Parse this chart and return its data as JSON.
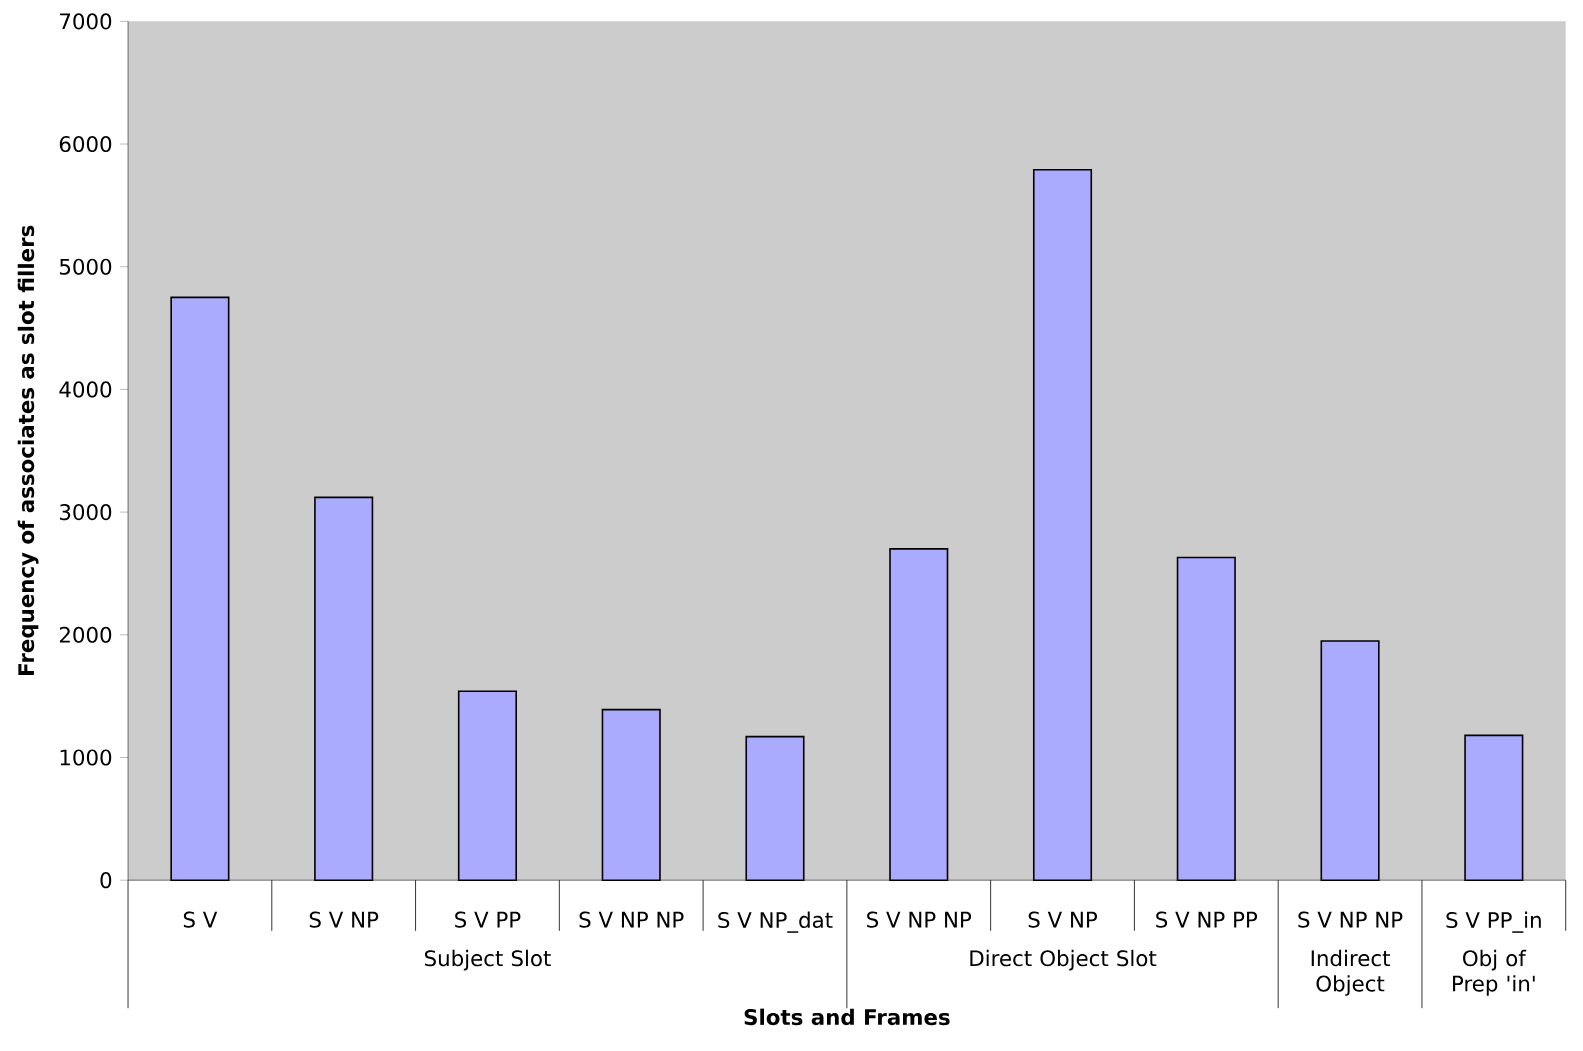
{
  "chart_data": {
    "type": "bar",
    "xlabel": "Slots and Frames",
    "ylabel": "Frequency of associates as slot fillers",
    "categories": [
      "S V",
      "S V NP",
      "S V PP",
      "S V NP NP",
      "S V NP_dat",
      "S V NP NP",
      "S V NP",
      "S V NP PP",
      "S V NP NP",
      "S V PP_in"
    ],
    "values": [
      4750,
      3120,
      1540,
      1390,
      1170,
      2700,
      5790,
      2630,
      1950,
      1180
    ],
    "color": "#aaaaff",
    "ylim": [
      0,
      7000
    ],
    "yticks": [
      0,
      1000,
      2000,
      3000,
      4000,
      5000,
      6000,
      7000
    ],
    "grid": false,
    "annotations": [
      "Subject Slot",
      "Direct Object Slot",
      "Indirect Object",
      "Obj of Prep 'in'"
    ]
  }
}
